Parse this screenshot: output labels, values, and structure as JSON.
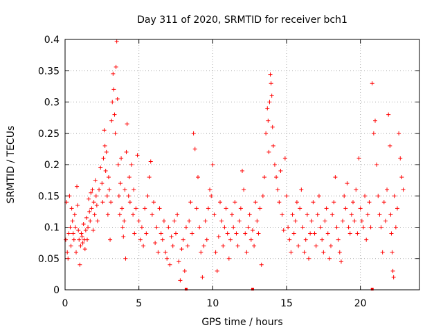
{
  "chart_data": {
    "type": "scatter",
    "title": "Day 311 of 2020, SRMTID for receiver bch1",
    "xlabel": "GPS time / hours",
    "ylabel": "SRMTID / TECUs",
    "xlim": [
      0,
      24
    ],
    "ylim": [
      0,
      0.4
    ],
    "xticks": [
      0,
      5,
      10,
      15,
      20
    ],
    "xtick_labels": [
      "0",
      "5",
      "10",
      "15",
      "20"
    ],
    "yticks": [
      0,
      0.05,
      0.1,
      0.15,
      0.2,
      0.25,
      0.3,
      0.35,
      0.4
    ],
    "ytick_labels": [
      "0",
      "0.05",
      "0.1",
      "0.15",
      "0.2",
      "0.25",
      "0.3",
      "0.35",
      "0.4"
    ],
    "grid": true,
    "marker": "plus",
    "color": "#ff0000",
    "series": [
      {
        "name": "bch1",
        "points": [
          [
            0.05,
            0.08
          ],
          [
            0.1,
            0.14
          ],
          [
            0.15,
            0.06
          ],
          [
            0.2,
            0.05
          ],
          [
            0.25,
            0.09
          ],
          [
            0.3,
            0.15
          ],
          [
            0.35,
            0.1
          ],
          [
            0.4,
            0.07
          ],
          [
            0.45,
            0.13
          ],
          [
            0.5,
            0.11
          ],
          [
            0.55,
            0.09
          ],
          [
            0.6,
            0.08
          ],
          [
            0.65,
            0.12
          ],
          [
            0.7,
            0.1
          ],
          [
            0.75,
            0.06
          ],
          [
            0.8,
            0.165
          ],
          [
            0.85,
            0.135
          ],
          [
            0.9,
            0.095
          ],
          [
            0.95,
            0.08
          ],
          [
            1.0,
            0.04
          ],
          [
            1.05,
            0.07
          ],
          [
            1.1,
            0.09
          ],
          [
            1.15,
            0.085
          ],
          [
            1.2,
            0.075
          ],
          [
            1.25,
            0.105
          ],
          [
            1.3,
            0.08
          ],
          [
            1.35,
            0.065
          ],
          [
            1.4,
            0.095
          ],
          [
            1.45,
            0.115
          ],
          [
            1.5,
            0.08
          ],
          [
            1.55,
            0.1
          ],
          [
            1.6,
            0.145
          ],
          [
            1.65,
            0.125
          ],
          [
            1.7,
            0.11
          ],
          [
            1.75,
            0.155
          ],
          [
            1.8,
            0.13
          ],
          [
            1.85,
            0.16
          ],
          [
            1.9,
            0.095
          ],
          [
            1.95,
            0.14
          ],
          [
            2.0,
            0.12
          ],
          [
            2.05,
            0.175
          ],
          [
            2.1,
            0.15
          ],
          [
            2.15,
            0.135
          ],
          [
            2.2,
            0.11
          ],
          [
            2.3,
            0.16
          ],
          [
            2.4,
            0.195
          ],
          [
            2.5,
            0.17
          ],
          [
            2.55,
            0.14
          ],
          [
            2.6,
            0.21
          ],
          [
            2.65,
            0.255
          ],
          [
            2.7,
            0.23
          ],
          [
            2.75,
            0.19
          ],
          [
            2.8,
            0.22
          ],
          [
            2.85,
            0.15
          ],
          [
            2.9,
            0.12
          ],
          [
            2.95,
            0.18
          ],
          [
            3.0,
            0.16
          ],
          [
            3.05,
            0.08
          ],
          [
            3.1,
            0.14
          ],
          [
            3.15,
            0.27
          ],
          [
            3.2,
            0.3
          ],
          [
            3.25,
            0.345
          ],
          [
            3.3,
            0.32
          ],
          [
            3.35,
            0.28
          ],
          [
            3.4,
            0.25
          ],
          [
            3.45,
            0.356
          ],
          [
            3.5,
            0.397
          ],
          [
            3.55,
            0.305
          ],
          [
            3.6,
            0.2
          ],
          [
            3.65,
            0.15
          ],
          [
            3.7,
            0.12
          ],
          [
            3.75,
            0.17
          ],
          [
            3.8,
            0.21
          ],
          [
            3.85,
            0.13
          ],
          [
            3.9,
            0.1
          ],
          [
            3.95,
            0.085
          ],
          [
            4.0,
            0.11
          ],
          [
            4.05,
            0.16
          ],
          [
            4.1,
            0.05
          ],
          [
            4.15,
            0.22
          ],
          [
            4.2,
            0.265
          ],
          [
            4.3,
            0.15
          ],
          [
            4.35,
            0.18
          ],
          [
            4.4,
            0.14
          ],
          [
            4.5,
            0.2
          ],
          [
            4.6,
            0.12
          ],
          [
            4.65,
            0.16
          ],
          [
            4.7,
            0.09
          ],
          [
            4.8,
            0.13
          ],
          [
            4.9,
            0.215
          ],
          [
            5.0,
            0.11
          ],
          [
            5.1,
            0.08
          ],
          [
            5.2,
            0.1
          ],
          [
            5.3,
            0.07
          ],
          [
            5.4,
            0.13
          ],
          [
            5.5,
            0.09
          ],
          [
            5.6,
            0.15
          ],
          [
            5.7,
            0.18
          ],
          [
            5.8,
            0.205
          ],
          [
            5.9,
            0.12
          ],
          [
            6.0,
            0.14
          ],
          [
            6.1,
            0.075
          ],
          [
            6.2,
            0.1
          ],
          [
            6.3,
            0.06
          ],
          [
            6.4,
            0.13
          ],
          [
            6.5,
            0.09
          ],
          [
            6.6,
            0.08
          ],
          [
            6.7,
            0.11
          ],
          [
            6.8,
            0.06
          ],
          [
            6.9,
            0.05
          ],
          [
            7.0,
            0.1
          ],
          [
            7.1,
            0.04
          ],
          [
            7.2,
            0.085
          ],
          [
            7.3,
            0.07
          ],
          [
            7.4,
            0.11
          ],
          [
            7.5,
            0.09
          ],
          [
            7.6,
            0.12
          ],
          [
            7.7,
            0.045
          ],
          [
            7.8,
            0.015
          ],
          [
            7.9,
            0.065
          ],
          [
            8.0,
            0.08
          ],
          [
            8.1,
            0.03
          ],
          [
            8.2,
            0.1
          ],
          [
            8.3,
            0.07
          ],
          [
            8.4,
            0.11
          ],
          [
            8.5,
            0.14
          ],
          [
            8.6,
            0.09
          ],
          [
            8.7,
            0.25
          ],
          [
            8.8,
            0.225
          ],
          [
            8.9,
            0.13
          ],
          [
            9.0,
            0.18
          ],
          [
            9.1,
            0.1
          ],
          [
            9.2,
            0.06
          ],
          [
            9.3,
            0.02
          ],
          [
            9.4,
            0.07
          ],
          [
            9.5,
            0.11
          ],
          [
            9.6,
            0.08
          ],
          [
            9.7,
            0.13
          ],
          [
            9.8,
            0.16
          ],
          [
            9.9,
            0.15
          ],
          [
            10.0,
            0.2
          ],
          [
            10.1,
            0.12
          ],
          [
            10.2,
            0.06
          ],
          [
            10.3,
            0.03
          ],
          [
            10.4,
            0.085
          ],
          [
            10.5,
            0.14
          ],
          [
            10.6,
            0.11
          ],
          [
            10.7,
            0.07
          ],
          [
            10.8,
            0.1
          ],
          [
            10.9,
            0.13
          ],
          [
            11.0,
            0.09
          ],
          [
            11.1,
            0.05
          ],
          [
            11.2,
            0.08
          ],
          [
            11.3,
            0.12
          ],
          [
            11.4,
            0.1
          ],
          [
            11.5,
            0.14
          ],
          [
            11.6,
            0.09
          ],
          [
            11.7,
            0.07
          ],
          [
            11.8,
            0.11
          ],
          [
            11.9,
            0.13
          ],
          [
            12.0,
            0.19
          ],
          [
            12.1,
            0.16
          ],
          [
            12.2,
            0.09
          ],
          [
            12.3,
            0.06
          ],
          [
            12.4,
            0.1
          ],
          [
            12.5,
            0.12
          ],
          [
            12.6,
            0.08
          ],
          [
            12.7,
            0.095
          ],
          [
            12.8,
            0.07
          ],
          [
            12.9,
            0.14
          ],
          [
            13.0,
            0.11
          ],
          [
            13.1,
            0.09
          ],
          [
            13.2,
            0.13
          ],
          [
            13.3,
            0.04
          ],
          [
            13.4,
            0.15
          ],
          [
            13.5,
            0.18
          ],
          [
            13.6,
            0.25
          ],
          [
            13.7,
            0.29
          ],
          [
            13.75,
            0.27
          ],
          [
            13.8,
            0.22
          ],
          [
            13.85,
            0.3
          ],
          [
            13.9,
            0.344
          ],
          [
            13.95,
            0.33
          ],
          [
            14.0,
            0.31
          ],
          [
            14.05,
            0.26
          ],
          [
            14.1,
            0.23
          ],
          [
            14.2,
            0.2
          ],
          [
            14.3,
            0.18
          ],
          [
            14.4,
            0.16
          ],
          [
            14.5,
            0.14
          ],
          [
            14.6,
            0.19
          ],
          [
            14.7,
            0.12
          ],
          [
            14.8,
            0.095
          ],
          [
            14.9,
            0.21
          ],
          [
            15.0,
            0.15
          ],
          [
            15.1,
            0.1
          ],
          [
            15.2,
            0.08
          ],
          [
            15.3,
            0.06
          ],
          [
            15.4,
            0.12
          ],
          [
            15.5,
            0.09
          ],
          [
            15.6,
            0.11
          ],
          [
            15.7,
            0.14
          ],
          [
            15.8,
            0.07
          ],
          [
            15.9,
            0.13
          ],
          [
            16.0,
            0.16
          ],
          [
            16.1,
            0.1
          ],
          [
            16.2,
            0.06
          ],
          [
            16.3,
            0.08
          ],
          [
            16.4,
            0.12
          ],
          [
            16.5,
            0.05
          ],
          [
            16.6,
            0.09
          ],
          [
            16.7,
            0.11
          ],
          [
            16.8,
            0.14
          ],
          [
            16.9,
            0.09
          ],
          [
            17.0,
            0.07
          ],
          [
            17.1,
            0.12
          ],
          [
            17.2,
            0.15
          ],
          [
            17.3,
            0.1
          ],
          [
            17.4,
            0.08
          ],
          [
            17.5,
            0.06
          ],
          [
            17.6,
            0.11
          ],
          [
            17.7,
            0.13
          ],
          [
            17.8,
            0.09
          ],
          [
            17.9,
            0.05
          ],
          [
            18.0,
            0.07
          ],
          [
            18.1,
            0.12
          ],
          [
            18.2,
            0.14
          ],
          [
            18.3,
            0.18
          ],
          [
            18.4,
            0.1
          ],
          [
            18.5,
            0.08
          ],
          [
            18.6,
            0.06
          ],
          [
            18.7,
            0.045
          ],
          [
            18.8,
            0.11
          ],
          [
            18.9,
            0.15
          ],
          [
            19.0,
            0.13
          ],
          [
            19.1,
            0.17
          ],
          [
            19.2,
            0.1
          ],
          [
            19.3,
            0.09
          ],
          [
            19.4,
            0.12
          ],
          [
            19.5,
            0.14
          ],
          [
            19.6,
            0.11
          ],
          [
            19.7,
            0.16
          ],
          [
            19.8,
            0.09
          ],
          [
            19.9,
            0.21
          ],
          [
            20.0,
            0.13
          ],
          [
            20.1,
            0.11
          ],
          [
            20.2,
            0.1
          ],
          [
            20.3,
            0.15
          ],
          [
            20.4,
            0.08
          ],
          [
            20.5,
            0.12
          ],
          [
            20.6,
            0.14
          ],
          [
            20.7,
            0.1
          ],
          [
            20.8,
            0.33
          ],
          [
            20.9,
            0.25
          ],
          [
            21.0,
            0.27
          ],
          [
            21.1,
            0.2
          ],
          [
            21.2,
            0.15
          ],
          [
            21.3,
            0.12
          ],
          [
            21.4,
            0.1
          ],
          [
            21.5,
            0.06
          ],
          [
            21.6,
            0.14
          ],
          [
            21.7,
            0.11
          ],
          [
            21.8,
            0.16
          ],
          [
            21.9,
            0.28
          ],
          [
            22.0,
            0.23
          ],
          [
            22.05,
            0.12
          ],
          [
            22.1,
            0.09
          ],
          [
            22.15,
            0.06
          ],
          [
            22.2,
            0.03
          ],
          [
            22.25,
            0.02
          ],
          [
            22.3,
            0.15
          ],
          [
            22.4,
            0.1
          ],
          [
            22.5,
            0.13
          ],
          [
            22.6,
            0.25
          ],
          [
            22.7,
            0.21
          ],
          [
            22.8,
            0.18
          ],
          [
            22.9,
            0.16
          ]
        ]
      }
    ],
    "axis_markers_x": [
      8.2,
      12.7,
      20.8
    ]
  }
}
